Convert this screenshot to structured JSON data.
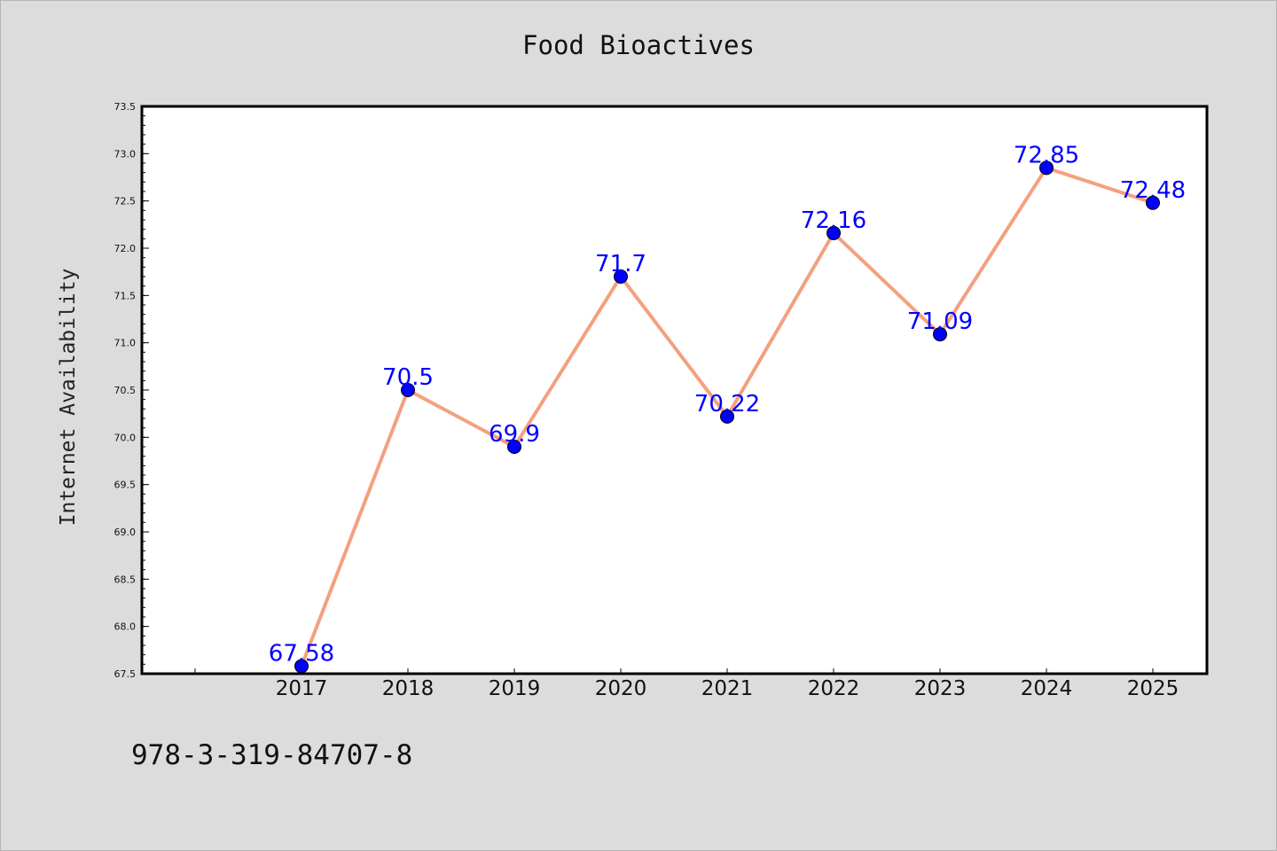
{
  "chart_data": {
    "type": "line",
    "title": "Food Bioactives",
    "xlabel": "",
    "ylabel": "Internet Availability",
    "categories": [
      "2017",
      "2018",
      "2019",
      "2020",
      "2021",
      "2022",
      "2023",
      "2024",
      "2025"
    ],
    "series": [
      {
        "values": [
          67.58,
          70.5,
          69.9,
          71.7,
          70.22,
          72.16,
          71.09,
          72.85,
          72.48
        ],
        "labels": [
          "67.58",
          "70.5",
          "69.9",
          "71.7",
          "70.22",
          "72.16",
          "71.09",
          "72.85",
          "72.48"
        ],
        "line_color": "#f4a07f",
        "marker_color": "#0000ff",
        "label_color": "#0000ff"
      }
    ],
    "ylim": [
      67.5,
      73.5
    ],
    "yticks": [
      "67.5",
      "68.0",
      "68.5",
      "69.0",
      "69.5",
      "70.0",
      "70.5",
      "71.0",
      "71.5",
      "72.0",
      "72.5",
      "73.0",
      "73.5"
    ],
    "grid": false,
    "legend": "none"
  },
  "footer": {
    "isbn": "978-3-319-84707-8"
  }
}
